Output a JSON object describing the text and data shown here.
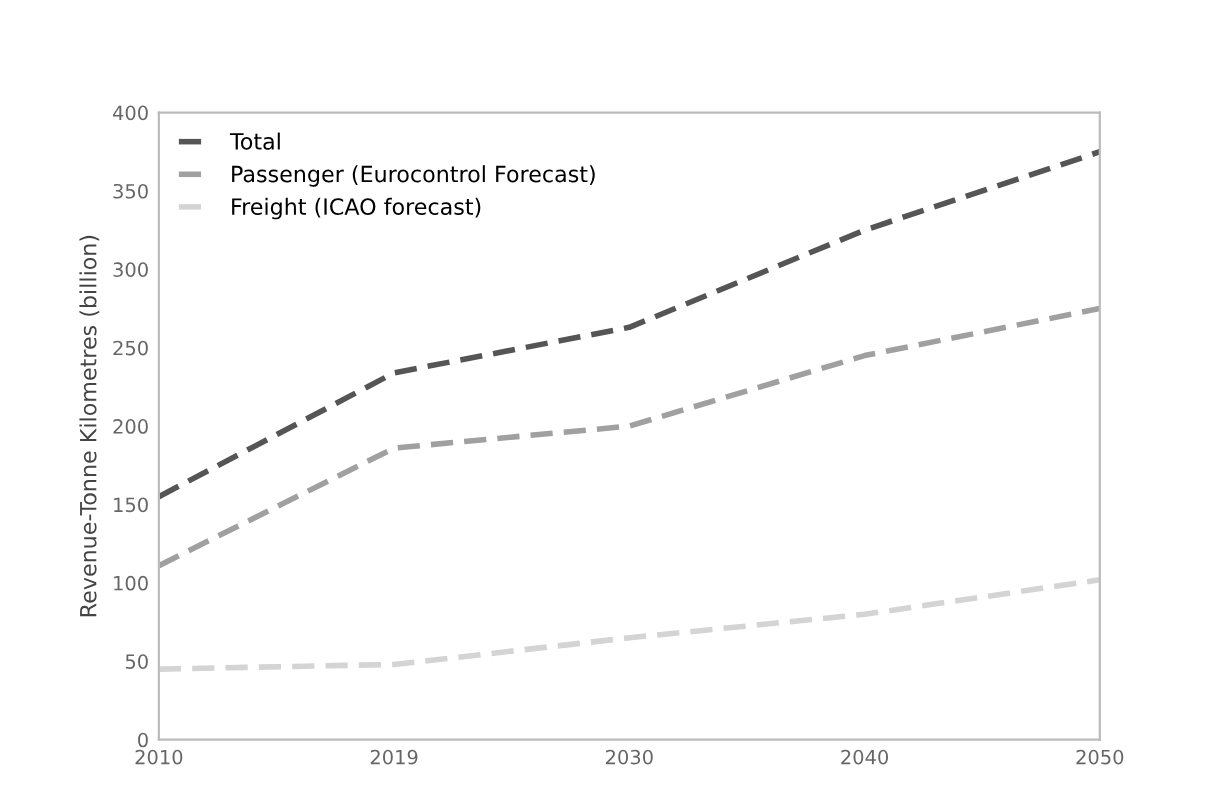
{
  "chart_data": {
    "type": "line",
    "ylabel": "Revenue-Tonne Kilometres (billion)",
    "categories": [
      "2010",
      "2019",
      "2030",
      "2040",
      "2050"
    ],
    "ylim": [
      0,
      400
    ],
    "yticks": [
      0,
      50,
      100,
      150,
      200,
      250,
      300,
      350,
      400
    ],
    "grid": false,
    "legend": "top left",
    "marker": "none",
    "series": [
      {
        "name": "Total",
        "color": "#555555",
        "line_style": "dashed",
        "values": [
          155,
          234,
          263,
          325,
          375
        ]
      },
      {
        "name": "Passenger (Eurocontrol Forecast)",
        "color": "#a0a0a0",
        "line_style": "dashed",
        "values": [
          111,
          186,
          200,
          245,
          275
        ]
      },
      {
        "name": "Freight (ICAO forecast)",
        "color": "#d4d4d4",
        "line_style": "dashed",
        "values": [
          45,
          48,
          65,
          80,
          102
        ]
      }
    ]
  }
}
